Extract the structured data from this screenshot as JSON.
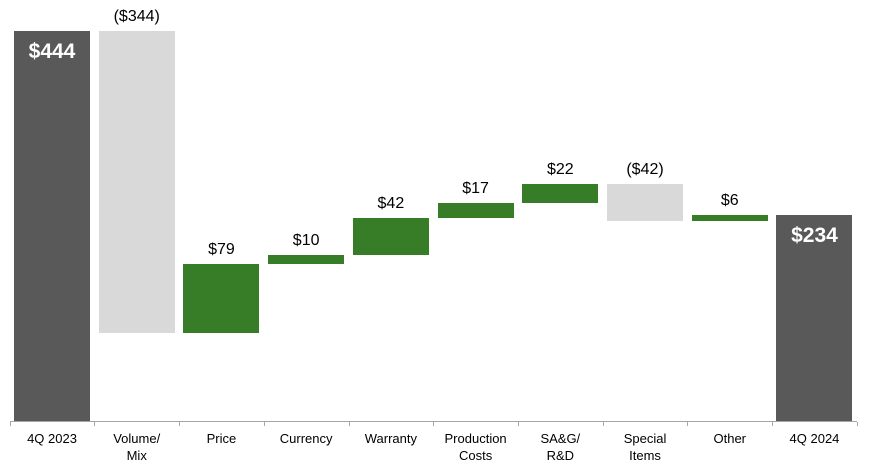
{
  "chart_data": {
    "type": "waterfall",
    "title": "",
    "currency_unit": "$",
    "start_total": 444,
    "end_total": 234,
    "ylim": [
      0,
      444
    ],
    "grid": false,
    "legend": null,
    "bars": [
      {
        "category_lines": [
          "4Q 2023"
        ],
        "name": "4Q 2023",
        "value": 444,
        "label": "$444",
        "kind": "total",
        "label_position": "inside"
      },
      {
        "category_lines": [
          "Volume/",
          "Mix"
        ],
        "name": "Volume/Mix",
        "value": -344,
        "label": "($344)",
        "kind": "decrease",
        "label_position": "above"
      },
      {
        "category_lines": [
          "Price"
        ],
        "name": "Price",
        "value": 79,
        "label": "$79",
        "kind": "increase",
        "label_position": "above"
      },
      {
        "category_lines": [
          "Currency"
        ],
        "name": "Currency",
        "value": 10,
        "label": "$10",
        "kind": "increase",
        "label_position": "above"
      },
      {
        "category_lines": [
          "Warranty"
        ],
        "name": "Warranty",
        "value": 42,
        "label": "$42",
        "kind": "increase",
        "label_position": "above"
      },
      {
        "category_lines": [
          "Production",
          "Costs"
        ],
        "name": "Production Costs",
        "value": 17,
        "label": "$17",
        "kind": "increase",
        "label_position": "above"
      },
      {
        "category_lines": [
          "SA&G/",
          "R&D"
        ],
        "name": "SA&G/R&D",
        "value": 22,
        "label": "$22",
        "kind": "increase",
        "label_position": "above"
      },
      {
        "category_lines": [
          "Special",
          "Items"
        ],
        "name": "Special Items",
        "value": -42,
        "label": "($42)",
        "kind": "decrease",
        "label_position": "above"
      },
      {
        "category_lines": [
          "Other"
        ],
        "name": "Other",
        "value": 6,
        "label": "$6",
        "kind": "increase",
        "label_position": "above"
      },
      {
        "category_lines": [
          "4Q 2024"
        ],
        "name": "4Q 2024",
        "value": 234,
        "label": "$234",
        "kind": "total",
        "label_position": "inside"
      }
    ],
    "colors": {
      "total": "#595959",
      "increase": "#377d28",
      "decrease": "#d9d9d9",
      "axis": "#a6a6a6",
      "label_text": "#000000",
      "inside_label_text": "#ffffff",
      "background": "#ffffff"
    }
  }
}
